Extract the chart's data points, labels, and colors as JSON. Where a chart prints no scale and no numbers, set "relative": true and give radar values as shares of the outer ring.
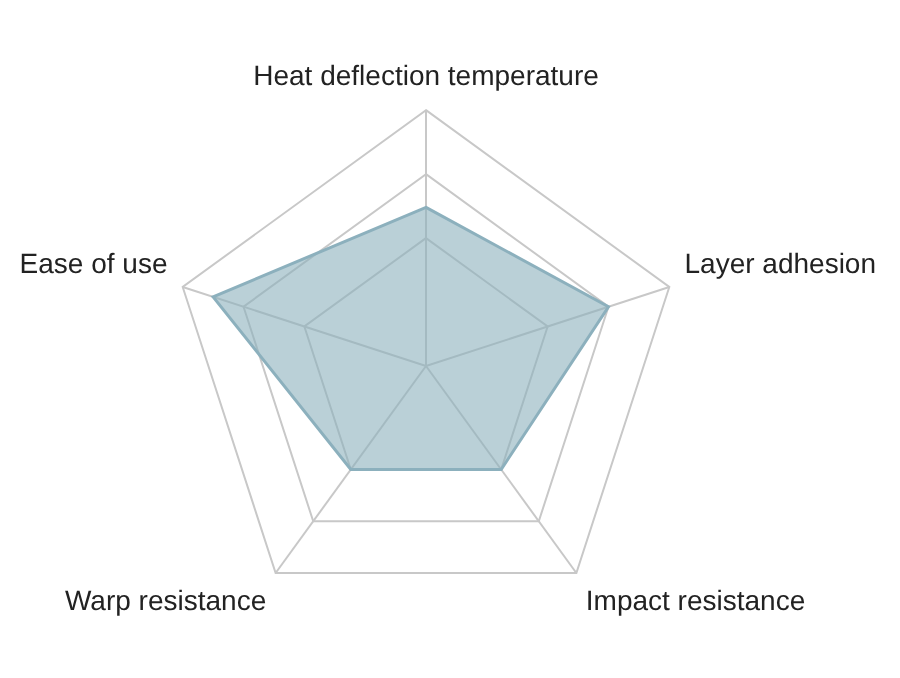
{
  "chart_data": {
    "type": "radar",
    "relative": true,
    "categories": [
      "Heat deflection temperature",
      "Layer adhesion",
      "Impact resistance",
      "Warp resistance",
      "Ease of use"
    ],
    "series": [
      {
        "color": "#8cb0bd",
        "values": [
          0.62,
          0.75,
          0.5,
          0.5,
          0.875
        ]
      }
    ],
    "grid": true,
    "legend": false
  }
}
